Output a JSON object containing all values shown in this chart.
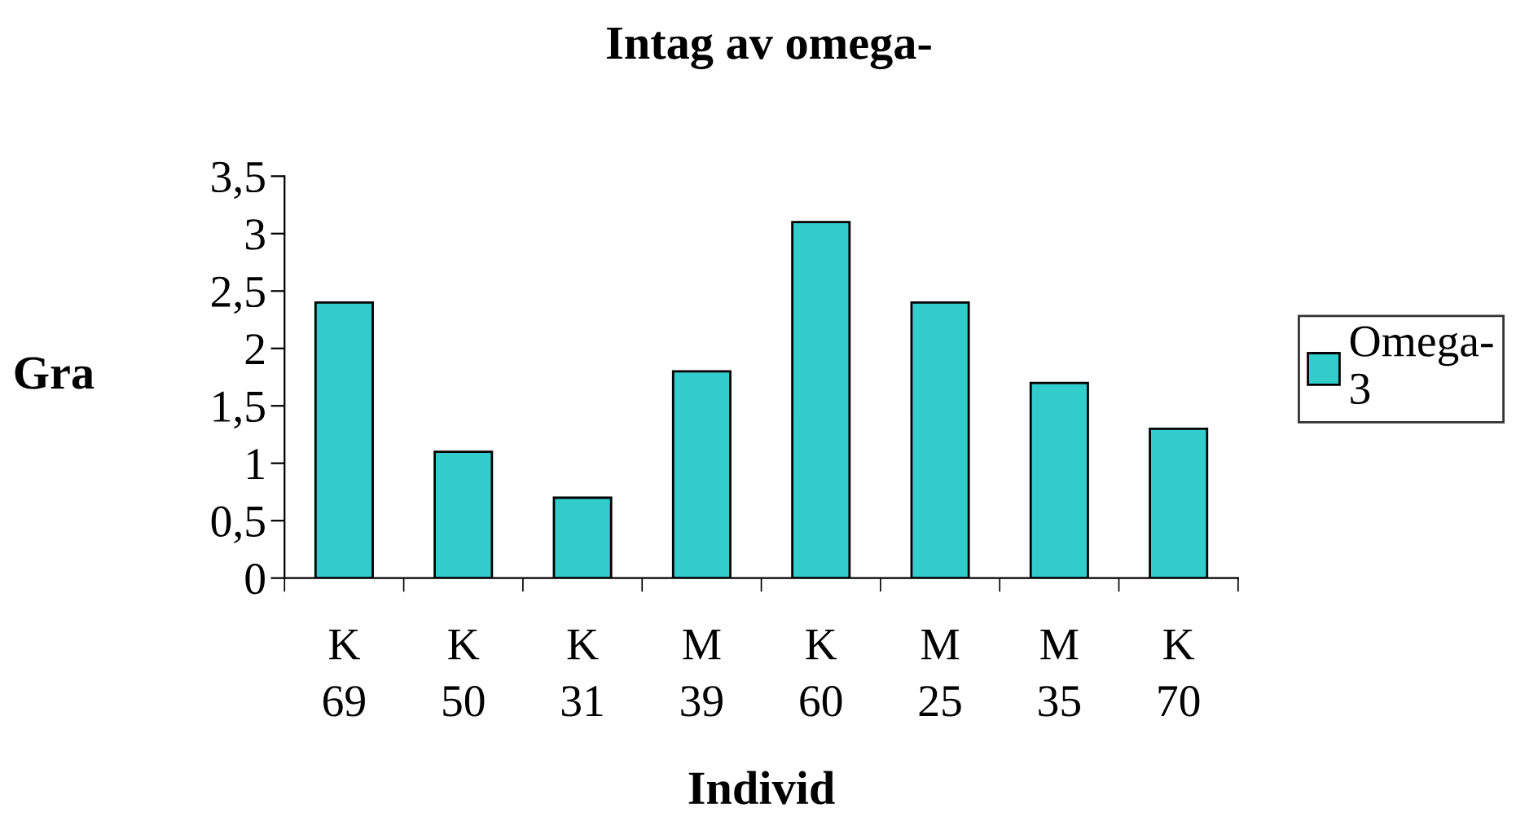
{
  "chart_data": {
    "type": "bar",
    "title": "Intag av omega-",
    "xlabel": "Individ",
    "ylabel": "Gra",
    "categories": [
      "K\n69",
      "K\n50",
      "K\n31",
      "M\n39",
      "K\n60",
      "M\n25",
      "M\n35",
      "K\n70"
    ],
    "series": [
      {
        "name": "Omega-\n3",
        "color": "#33cccc",
        "values": [
          2.4,
          1.1,
          0.7,
          1.8,
          3.1,
          2.4,
          1.7,
          1.3
        ]
      }
    ],
    "ylim": [
      0,
      3.5
    ],
    "yticks": [
      0,
      {
        "value": 0.5,
        "label": "0,5"
      },
      1,
      {
        "value": 1.5,
        "label": "1,5"
      },
      2,
      {
        "value": 2.5,
        "label": "2,5"
      },
      3,
      {
        "value": 3.5,
        "label": "3,5"
      }
    ],
    "grid": false,
    "legend": "right"
  }
}
